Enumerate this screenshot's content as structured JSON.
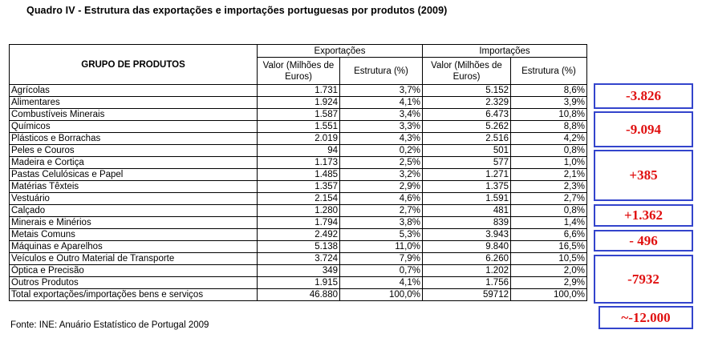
{
  "title": "Quadro IV - Estrutura das exportações e importações portuguesas por produtos (2009)",
  "header": {
    "group_label": "GRUPO DE PRODUTOS",
    "exports_label": "Exportações",
    "imports_label": "Importações",
    "value_label": "Valor (Milhões de Euros)",
    "structure_label": "Estrutura (%)"
  },
  "rows": [
    {
      "name": "Agrícolas",
      "exp_val": "1.731",
      "exp_pct": "3,7%",
      "imp_val": "5.152",
      "imp_pct": "8,6%"
    },
    {
      "name": "Alimentares",
      "exp_val": "1.924",
      "exp_pct": "4,1%",
      "imp_val": "2.329",
      "imp_pct": "3,9%"
    },
    {
      "name": "Combustíveis Minerais",
      "exp_val": "1.587",
      "exp_pct": "3,4%",
      "imp_val": "6.473",
      "imp_pct": "10,8%"
    },
    {
      "name": "Químicos",
      "exp_val": "1.551",
      "exp_pct": "3,3%",
      "imp_val": "5.262",
      "imp_pct": "8,8%"
    },
    {
      "name": "Plásticos e Borrachas",
      "exp_val": "2.019",
      "exp_pct": "4,3%",
      "imp_val": "2.516",
      "imp_pct": "4,2%"
    },
    {
      "name": "Peles e Couros",
      "exp_val": "94",
      "exp_pct": "0,2%",
      "imp_val": "501",
      "imp_pct": "0,8%"
    },
    {
      "name": "Madeira e Cortiça",
      "exp_val": "1.173",
      "exp_pct": "2,5%",
      "imp_val": "577",
      "imp_pct": "1,0%"
    },
    {
      "name": "Pastas Celulósicas e Papel",
      "exp_val": "1.485",
      "exp_pct": "3,2%",
      "imp_val": "1.271",
      "imp_pct": "2,1%"
    },
    {
      "name": "Matérias Têxteis",
      "exp_val": "1.357",
      "exp_pct": "2,9%",
      "imp_val": "1.375",
      "imp_pct": "2,3%"
    },
    {
      "name": "Vestuário",
      "exp_val": "2.154",
      "exp_pct": "4,6%",
      "imp_val": "1.591",
      "imp_pct": "2,7%"
    },
    {
      "name": "Calçado",
      "exp_val": "1.280",
      "exp_pct": "2,7%",
      "imp_val": "481",
      "imp_pct": "0,8%"
    },
    {
      "name": "Minerais e Minérios",
      "exp_val": "1.794",
      "exp_pct": "3,8%",
      "imp_val": "839",
      "imp_pct": "1,4%"
    },
    {
      "name": "Metais Comuns",
      "exp_val": "2.492",
      "exp_pct": "5,3%",
      "imp_val": "3.943",
      "imp_pct": "6,6%"
    },
    {
      "name": "Máquinas e Aparelhos",
      "exp_val": "5.138",
      "exp_pct": "11,0%",
      "imp_val": "9.840",
      "imp_pct": "16,5%"
    },
    {
      "name": "Veículos e Outro Material de Transporte",
      "exp_val": "3.724",
      "exp_pct": "7,9%",
      "imp_val": "6.260",
      "imp_pct": "10,5%"
    },
    {
      "name": "Óptica e Precisão",
      "exp_val": "349",
      "exp_pct": "0,7%",
      "imp_val": "1.202",
      "imp_pct": "2,0%"
    },
    {
      "name": "Outros Produtos",
      "exp_val": "1.915",
      "exp_pct": "4,1%",
      "imp_val": "1.756",
      "imp_pct": "2,9%"
    }
  ],
  "total": {
    "name": "Total exportações/importações bens e serviços",
    "exp_val": "46.880",
    "exp_pct": "100,0%",
    "imp_val": "59712",
    "imp_pct": "100,0%"
  },
  "source": "Fonte: INE: Anuário Estatístico de Portugal 2009",
  "balances": [
    "-3.826",
    "-9.094",
    "+385",
    "+1.362",
    "- 496",
    "-7932",
    "~-12.000"
  ],
  "colors": {
    "balance_text": "#e01010",
    "balance_border": "#3344cc"
  }
}
